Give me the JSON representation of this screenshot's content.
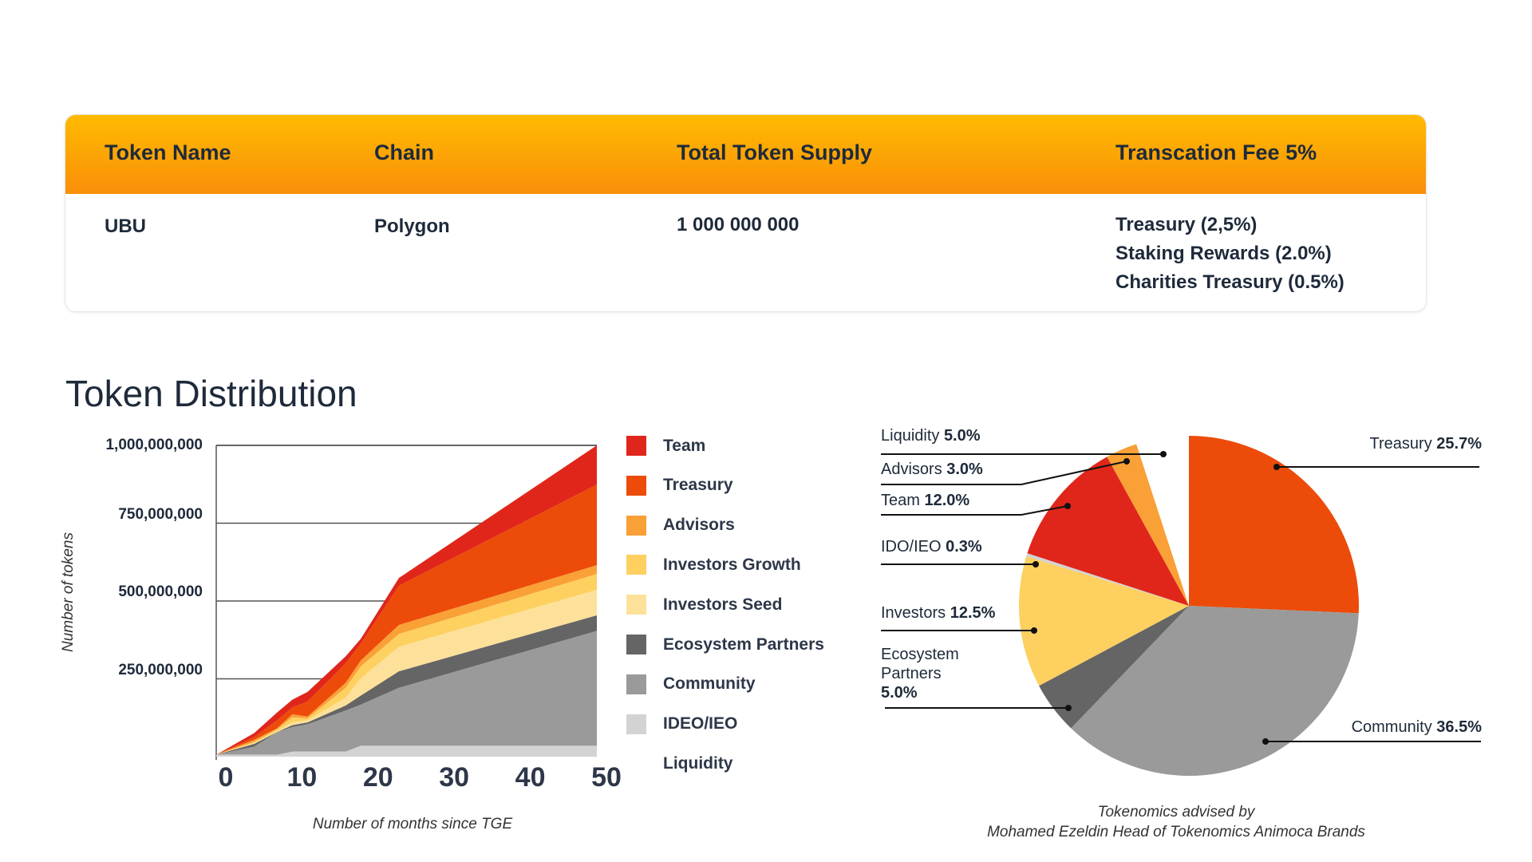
{
  "table": {
    "headers": [
      "Token Name",
      "Chain",
      "Total Token Supply",
      "Transcation Fee 5%"
    ],
    "row": {
      "token_name": "UBU",
      "chain": "Polygon",
      "supply": "1 000 000 000",
      "fees": [
        "Treasury (2,5%)",
        "Staking Rewards (2.0%)",
        "Charities Treasury (0.5%)"
      ]
    }
  },
  "section_title": "Token Distribution",
  "chart_data": [
    {
      "type": "area",
      "stacked": true,
      "xlabel": "Number of months since TGE",
      "ylabel": "Number of tokens",
      "xlim": [
        0,
        50
      ],
      "ylim": [
        0,
        1000000000
      ],
      "xticks": [
        "0",
        "10",
        "20",
        "30",
        "40",
        "50"
      ],
      "yticks": [
        {
          "value": 1000000000,
          "label": "1,000,000,000"
        },
        {
          "value": 750000000,
          "label": "750,000,000"
        },
        {
          "value": 500000000,
          "label": "500,000,000"
        },
        {
          "value": 250000000,
          "label": "250,000,000"
        }
      ],
      "grid": true,
      "legend_placement": "right",
      "x": [
        0,
        5,
        8,
        10,
        12,
        17,
        19,
        24,
        50
      ],
      "series": [
        {
          "name": "IDEO/IEO",
          "color": "#d3d3d3",
          "cumulative": [
            6,
            6,
            6,
            16,
            16,
            16,
            35,
            35,
            35
          ]
        },
        {
          "name": "Community",
          "color": "#9a9a9a",
          "cumulative": [
            6,
            32,
            79,
            95,
            104,
            148,
            167,
            221,
            404
          ]
        },
        {
          "name": "Ecosystem Partners",
          "color": "#656565",
          "cumulative": [
            6,
            41,
            79,
            101,
            110,
            164,
            196,
            274,
            454
          ]
        },
        {
          "name": "Investors Seed",
          "color": "#fde19a",
          "cumulative": [
            6,
            44,
            82,
            110,
            117,
            189,
            252,
            353,
            536
          ]
        },
        {
          "name": "Investors Growth",
          "color": "#fdd060",
          "cumulative": [
            6,
            47,
            88,
            126,
            123,
            221,
            290,
            394,
            587
          ]
        },
        {
          "name": "Advisors",
          "color": "#f9a036",
          "cumulative": [
            6,
            54,
            91,
            136,
            129,
            237,
            309,
            423,
            615
          ]
        },
        {
          "name": "Treasury",
          "color": "#ec4b0a",
          "cumulative": [
            6,
            63,
            117,
            158,
            177,
            300,
            363,
            549,
            874
          ]
        },
        {
          "name": "Team",
          "color": "#e0261a",
          "cumulative": [
            6,
            76,
            142,
            183,
            208,
            322,
            379,
            574,
            1000
          ]
        }
      ],
      "cumulative_unit": "million tokens",
      "legend": [
        {
          "label": "Team",
          "color": "#e0261a"
        },
        {
          "label": "Treasury",
          "color": "#ec4b0a"
        },
        {
          "label": "Advisors",
          "color": "#f9a036"
        },
        {
          "label": "Investors Growth",
          "color": "#fdd060"
        },
        {
          "label": "Investors Seed",
          "color": "#fde19a"
        },
        {
          "label": "Ecosystem Partners",
          "color": "#656565"
        },
        {
          "label": "Community",
          "color": "#9a9a9a"
        },
        {
          "label": "IDEO/IEO",
          "color": "#d3d3d3"
        },
        {
          "label": "Liquidity",
          "color": "#ffffff"
        }
      ]
    },
    {
      "type": "pie",
      "slices": [
        {
          "name": "Treasury",
          "value": 25.7,
          "pct": "25.7%",
          "color": "#ec4b0a"
        },
        {
          "name": "Community",
          "value": 36.5,
          "pct": "36.5%",
          "color": "#9a9a9a"
        },
        {
          "name": "Ecosystem Partners",
          "value": 5.0,
          "pct": "5.0%",
          "color": "#656565"
        },
        {
          "name": "Investors",
          "value": 12.5,
          "pct": "12.5%",
          "color": "#fdd060"
        },
        {
          "name": "IDO/IEO",
          "value": 0.3,
          "pct": "0.3%",
          "color": "#d3d3d3"
        },
        {
          "name": "Team",
          "value": 12.0,
          "pct": "12.0%",
          "color": "#e0261a"
        },
        {
          "name": "Advisors",
          "value": 3.0,
          "pct": "3.0%",
          "color": "#f9a036"
        },
        {
          "name": "Liquidity",
          "value": 5.0,
          "pct": "5.0%",
          "color": "#ffffff"
        }
      ],
      "eco_label_lines": [
        "Ecosystem",
        "Partners"
      ],
      "caption": [
        "Tokenomics advised by",
        "Mohamed Ezeldin Head of Tokenomics Animoca Brands"
      ]
    }
  ]
}
